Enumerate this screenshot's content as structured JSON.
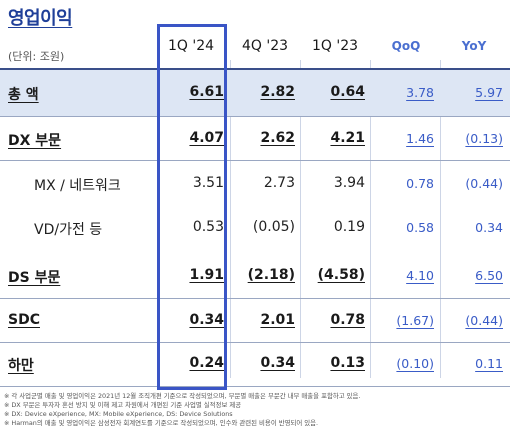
{
  "title": "영업이익",
  "unit": "(단위: 조원)",
  "headers": [
    "1Q '24",
    "4Q '23",
    "1Q '23",
    "QoQ",
    "YoY"
  ],
  "rows": [
    {
      "label": "총 액",
      "type": "main",
      "values": [
        "6.61",
        "2.82",
        "0.64",
        "3.78",
        "5.97"
      ]
    },
    {
      "label": "DX 부문",
      "type": "main",
      "values": [
        "4.07",
        "2.62",
        "4.21",
        "1.46",
        "(0.13)"
      ]
    },
    {
      "label": "MX / 네트워크",
      "type": "sub",
      "values": [
        "3.51",
        "2.73",
        "3.94",
        "0.78",
        "(0.44)"
      ]
    },
    {
      "label": "VD/가전 등",
      "type": "sub",
      "values": [
        "0.53",
        "(0.05)",
        "0.19",
        "0.58",
        "0.34"
      ]
    },
    {
      "label": "DS 부문",
      "type": "main",
      "values": [
        "1.91",
        "(2.18)",
        "(4.58)",
        "4.10",
        "6.50"
      ]
    },
    {
      "label": "SDC",
      "type": "main",
      "values": [
        "0.34",
        "2.01",
        "0.78",
        "(1.67)",
        "(0.44)"
      ]
    },
    {
      "label": "하만",
      "type": "main",
      "values": [
        "0.24",
        "0.34",
        "0.13",
        "(0.10)",
        "0.11"
      ]
    }
  ],
  "notes": [
    "※ 각 사업군별 매출 및 영업이익은 2021년 12월 조직개편 기준으로 작성되었으며, 부문별 매출은 부문간 내부 매출을 포함하고 있음.",
    "※ DX 부문은 투자자 혼선 방지 및 이해 제고 차원에서 개편된 기준 사업별 실적정보 제공",
    "※ DX: Device eXperience, MX: Mobile eXperience, DS: Device Solutions",
    "※ Harman의 매출 및 영업이익은 삼성전자 회계연도를 기준으로 작성되었으며, 인수와 관련된 비용이 반영되어 있음."
  ],
  "colors": {
    "title": "#1f3f99",
    "accent": "#3a55c6",
    "highlight_row": "#dde6f4",
    "delta": "#3a5cc7"
  }
}
